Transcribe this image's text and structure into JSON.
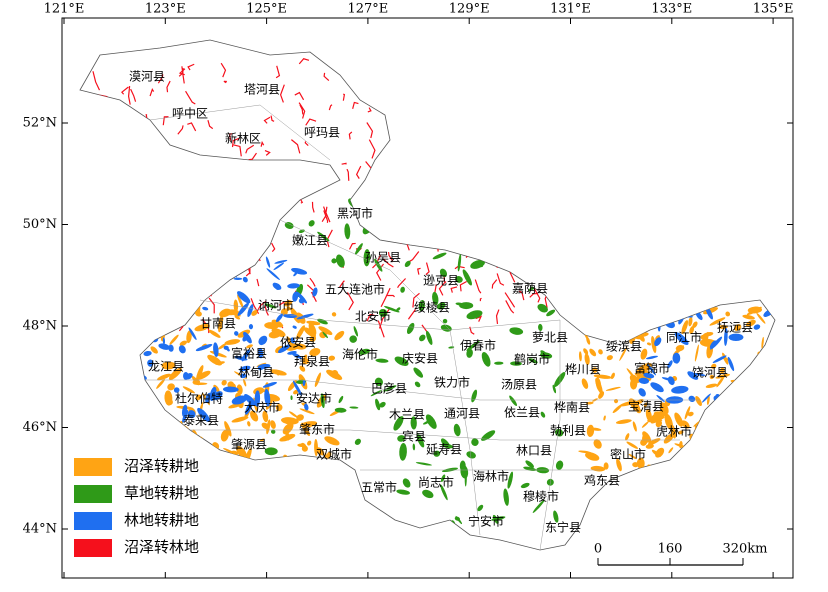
{
  "axes": {
    "longitude_labels": [
      "121°E",
      "123°E",
      "125°E",
      "127°E",
      "129°E",
      "131°E",
      "133°E",
      "135°E"
    ],
    "latitude_labels": [
      "52°N",
      "50°N",
      "48°N",
      "46°N",
      "44°N"
    ]
  },
  "places": [
    "漠河县",
    "塔河县",
    "呼中区",
    "新林区",
    "呼玛县",
    "黑河市",
    "嫩江县",
    "孙吴县",
    "逊克县",
    "嘉荫县",
    "五大连池市",
    "讷河市",
    "北安市",
    "绥棱县",
    "甘南县",
    "依安县",
    "富裕县",
    "海伦市",
    "萝北县",
    "伊春市",
    "鹤岗市",
    "绥滨县",
    "同江市",
    "抚远县",
    "龙江县",
    "林甸县",
    "拜泉县",
    "庆安县",
    "桦川县",
    "富锦市",
    "饶河县",
    "巴彦县",
    "铁力市",
    "汤原县",
    "杜尔伯特",
    "大庆市",
    "安达市",
    "木兰县",
    "通河县",
    "依兰县",
    "桦南县",
    "宝清县",
    "泰来县",
    "肇东市",
    "宾县",
    "勃利县",
    "虎林市",
    "肇源县",
    "双城市",
    "延寿县",
    "林口县",
    "密山市",
    "鸡东县",
    "海林市",
    "五常市",
    "尚志市",
    "穆棱市",
    "宁安市",
    "东宁县"
  ],
  "legend": [
    {
      "label": "沼泽转耕地",
      "color": "#ffa414"
    },
    {
      "label": "草地转耕地",
      "color": "#2f9a18"
    },
    {
      "label": "林地转耕地",
      "color": "#1f6ff0"
    },
    {
      "label": "沼泽转林地",
      "color": "#f5101c"
    }
  ],
  "scale_bar": {
    "labels": [
      "0",
      "160",
      "320km"
    ]
  }
}
